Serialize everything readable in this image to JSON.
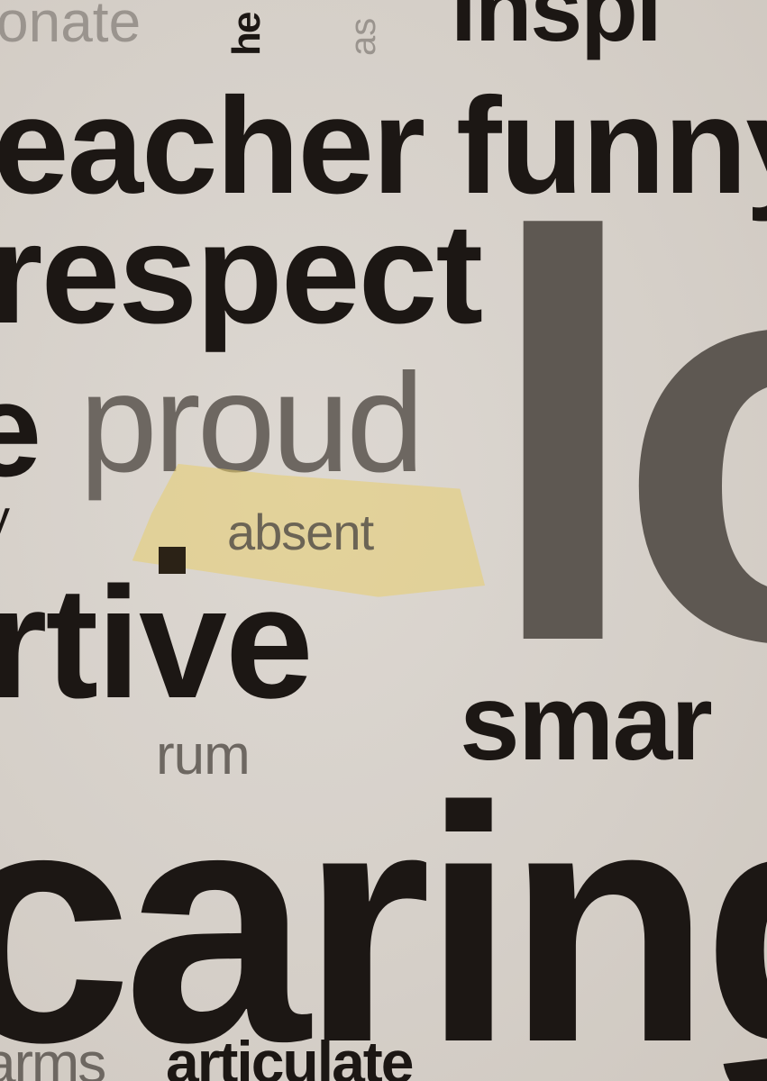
{
  "words": {
    "onate": "onate",
    "he": "he",
    "as": "as",
    "inspi": "inspi",
    "eacher": "eacher",
    "funny": "funny",
    "respect": "respect",
    "e": "e",
    "proud": "proud",
    "y": "y",
    "absent": "absent",
    "rtive": "rtive",
    "lo": "lo",
    "smar": "smar",
    "rum": "rum",
    "caring": "caring",
    "arms": "arms",
    "articulate": "articulate"
  },
  "colors": {
    "background": "#d8d2cc",
    "dark_text": "#1c1714",
    "grey_text": "#5e5852",
    "light_text": "#9a948e",
    "highlight": "#e8cd6e"
  }
}
